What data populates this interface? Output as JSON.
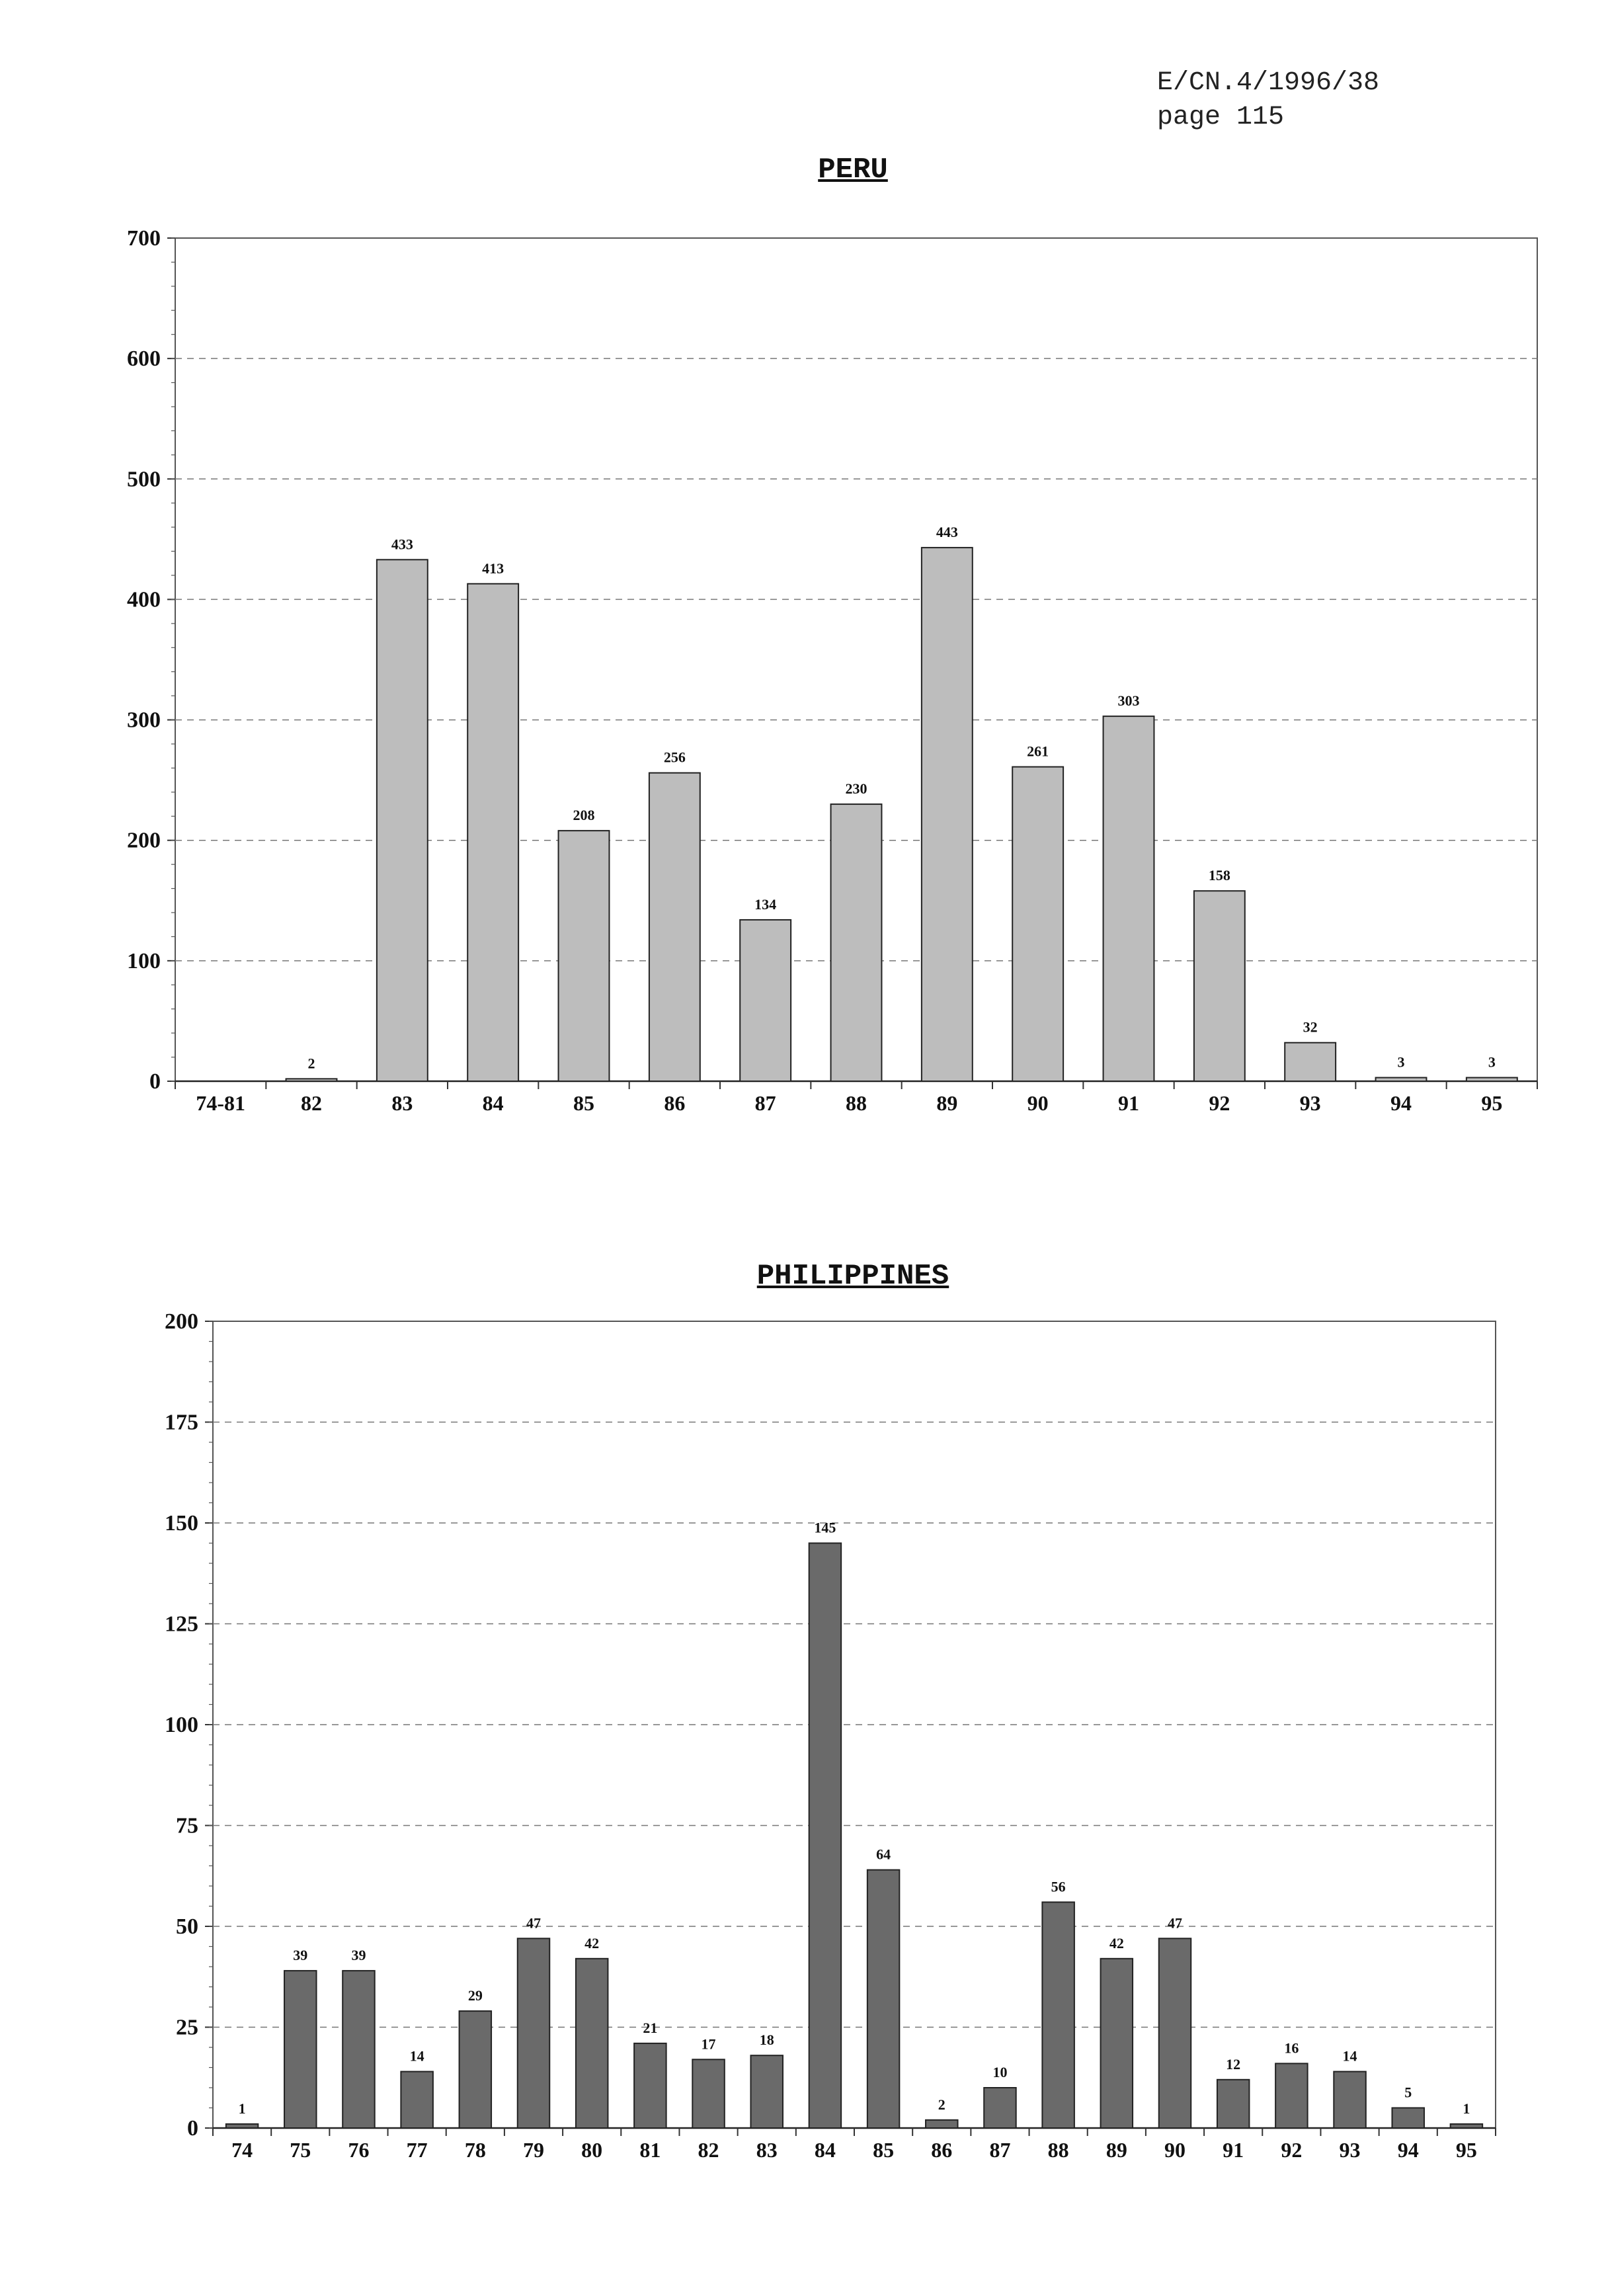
{
  "header": {
    "doc_ref": "E/CN.4/1996/38",
    "page": "page 115"
  },
  "chart_data": [
    {
      "type": "bar",
      "title": "PERU",
      "categories": [
        "74-81",
        "82",
        "83",
        "84",
        "85",
        "86",
        "87",
        "88",
        "89",
        "90",
        "91",
        "92",
        "93",
        "94",
        "95"
      ],
      "values": [
        0,
        2,
        433,
        413,
        208,
        256,
        134,
        230,
        443,
        261,
        303,
        158,
        32,
        3,
        3
      ],
      "value_labels": [
        "",
        "2",
        "433",
        "413",
        "208",
        "256",
        "134",
        "230",
        "443",
        "261",
        "303",
        "158",
        "32",
        "3",
        "3"
      ],
      "ylim": [
        0,
        700
      ],
      "yticks": [
        0,
        100,
        200,
        300,
        400,
        500,
        600,
        700
      ],
      "grid": true,
      "bar_color": "#bdbdbd",
      "xlabel": "",
      "ylabel": ""
    },
    {
      "type": "bar",
      "title": "PHILIPPINES",
      "categories": [
        "74",
        "75",
        "76",
        "77",
        "78",
        "79",
        "80",
        "81",
        "82",
        "83",
        "84",
        "85",
        "86",
        "87",
        "88",
        "89",
        "90",
        "91",
        "92",
        "93",
        "94",
        "95"
      ],
      "values": [
        1,
        39,
        39,
        14,
        29,
        47,
        42,
        21,
        17,
        18,
        145,
        64,
        2,
        10,
        56,
        42,
        47,
        12,
        16,
        14,
        5,
        1
      ],
      "value_labels": [
        "1",
        "39",
        "39",
        "14",
        "29",
        "47",
        "42",
        "21",
        "17",
        "18",
        "145",
        "64",
        "2",
        "10",
        "56",
        "42",
        "47",
        "12",
        "16",
        "14",
        "5",
        "1"
      ],
      "ylim": [
        0,
        200
      ],
      "yticks": [
        0,
        25,
        50,
        75,
        100,
        125,
        150,
        175,
        200
      ],
      "grid": true,
      "bar_color": "#6a6a6a",
      "xlabel": "",
      "ylabel": ""
    }
  ]
}
